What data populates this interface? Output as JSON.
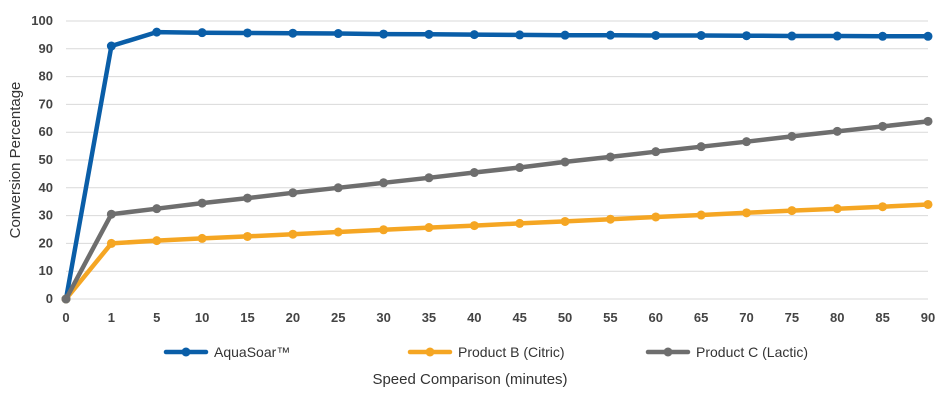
{
  "chart_data": {
    "type": "line",
    "title": "",
    "xlabel": "Speed Comparison (minutes)",
    "ylabel": "Conversion Percentage",
    "ylim": [
      0,
      100
    ],
    "yticks": [
      0,
      10,
      20,
      30,
      40,
      50,
      60,
      70,
      80,
      90,
      100
    ],
    "x_tick_labels": [
      "0",
      "1",
      "5",
      "10",
      "15",
      "20",
      "25",
      "30",
      "35",
      "40",
      "45",
      "50",
      "55",
      "60",
      "65",
      "70",
      "75",
      "80",
      "85",
      "90"
    ],
    "grid": "horizontal",
    "legend_position": "bottom",
    "series": [
      {
        "name": "AquaSoar™",
        "color": "#0a5ea8",
        "values": [
          0,
          91,
          96,
          95.8,
          95.7,
          95.6,
          95.5,
          95.3,
          95.2,
          95.1,
          95.0,
          94.9,
          94.9,
          94.8,
          94.8,
          94.7,
          94.6,
          94.6,
          94.5,
          94.5
        ]
      },
      {
        "name": "Product B (Citric)",
        "color": "#f5a623",
        "values": [
          0,
          20,
          21,
          21.8,
          22.5,
          23.3,
          24.1,
          24.9,
          25.7,
          26.4,
          27.2,
          27.9,
          28.7,
          29.5,
          30.2,
          31.0,
          31.8,
          32.5,
          33.2,
          34.0
        ]
      },
      {
        "name": "Product C (Lactic)",
        "color": "#6e6e6e",
        "values": [
          0,
          30.5,
          32.5,
          34.5,
          36.3,
          38.2,
          40.0,
          41.8,
          43.6,
          45.5,
          47.3,
          49.3,
          51.1,
          53.0,
          54.8,
          56.6,
          58.5,
          60.3,
          62.1,
          63.9
        ]
      }
    ]
  }
}
